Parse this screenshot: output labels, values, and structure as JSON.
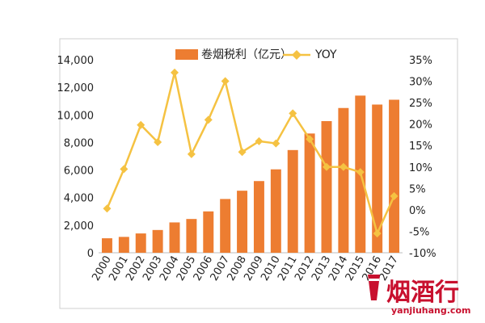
{
  "chart_data": {
    "type": "bar",
    "categories": [
      "2000",
      "2001",
      "2002",
      "2003",
      "2004",
      "2005",
      "2006",
      "2007",
      "2008",
      "2009",
      "2010",
      "2011",
      "2012",
      "2013",
      "2014",
      "2015",
      "2016",
      "2017"
    ],
    "series": [
      {
        "name": "卷烟税利（亿元）",
        "type": "bar",
        "axis": "left",
        "color": "#ed7d31",
        "values": [
          1050,
          1150,
          1400,
          1650,
          2200,
          2450,
          3000,
          3900,
          4500,
          5200,
          6050,
          7450,
          8650,
          9550,
          10500,
          11400,
          10750,
          11100
        ]
      },
      {
        "name": "YOY",
        "type": "line",
        "axis": "right",
        "color": "#f5c242",
        "values": [
          0.3,
          9.5,
          19.8,
          15.8,
          32.0,
          13.0,
          21.0,
          30.0,
          13.5,
          16.0,
          15.5,
          22.5,
          16.5,
          10.0,
          10.0,
          8.8,
          -5.5,
          3.2
        ]
      }
    ],
    "y_left": {
      "min": 0,
      "max": 14000,
      "step": 2000,
      "tick_labels": [
        "0",
        "2,000",
        "4,000",
        "6,000",
        "8,000",
        "10,000",
        "12,000",
        "14,000"
      ]
    },
    "y_right": {
      "min": -10,
      "max": 35,
      "step": 5,
      "tick_labels": [
        "-10%",
        "-5%",
        "0%",
        "5%",
        "10%",
        "15%",
        "20%",
        "25%",
        "30%",
        "35%"
      ]
    },
    "title": "",
    "xlabel": "",
    "ylabel": "",
    "grid": false,
    "legend_position": "top-center"
  },
  "legend": {
    "bar_label": "卷烟税利（亿元）",
    "line_label": "YOY"
  },
  "watermark": {
    "text": "烟酒行",
    "url": "yanjiuhang.com",
    "color": "#c8102e"
  }
}
